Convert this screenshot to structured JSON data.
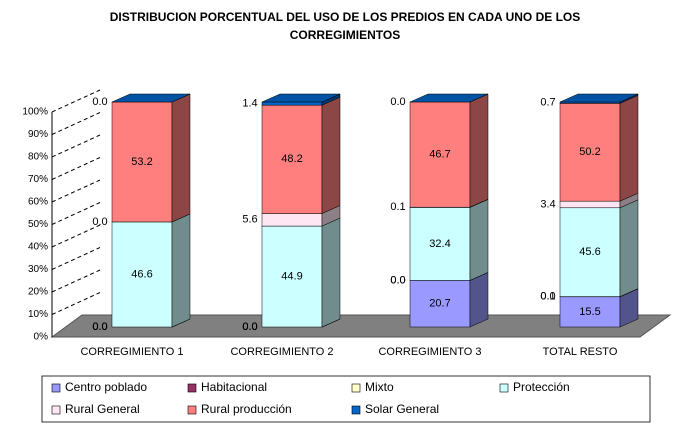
{
  "chart_data": {
    "type": "bar_percent_stacked_3d",
    "title": "DISTRIBUCION PORCENTUAL DEL USO DE LOS PREDIOS EN CADA UNO DE LOS",
    "subtitle": "CORREGIMIENTOS",
    "categories": [
      "CORREGIMIENTO 1",
      "CORREGIMIENTO 2",
      "CORREGIMIENTO 3",
      "TOTAL RESTO"
    ],
    "series": [
      {
        "name": "Centro poblado",
        "color": "#9999ff",
        "values": [
          0.0,
          0.0,
          20.7,
          15.5
        ],
        "value_labels": [
          "0.0",
          "0.0",
          "20.7",
          "15.5"
        ]
      },
      {
        "name": "Habitacional",
        "color": "#993366",
        "values": [
          0.0,
          0.0,
          0.0,
          0.1
        ],
        "value_labels": [
          "0.0",
          "0.0",
          "0.0",
          "0.1"
        ]
      },
      {
        "name": "Mixto",
        "color": "#ffffcc",
        "values": [
          0.0,
          0.0,
          0.0,
          0.0
        ],
        "value_labels": [
          "0.0",
          "0.0",
          "0.0",
          "0.0"
        ]
      },
      {
        "name": "Protección",
        "color": "#ccffff",
        "values": [
          46.6,
          44.9,
          32.4,
          45.6
        ]
      },
      {
        "name": "Rural General",
        "color": "#ffe6f2",
        "values": [
          0.0,
          5.6,
          0.1,
          3.4
        ],
        "value_labels": [
          "0.0",
          "5.6",
          "0.1",
          "3.4"
        ]
      },
      {
        "name": "Rural producción",
        "color": "#ff7f7f",
        "values": [
          53.2,
          48.2,
          46.7,
          50.2
        ]
      },
      {
        "name": "Solar General",
        "color": "#0066cc",
        "values": [
          0.0,
          1.4,
          0.0,
          0.7
        ],
        "value_labels": [
          "0.0",
          "1.4",
          "0.0",
          "0.7"
        ]
      }
    ],
    "ylim": [
      0,
      100
    ],
    "yticks": [
      {
        "value": 0,
        "label": "0%"
      },
      {
        "value": 10,
        "label": "10%"
      },
      {
        "value": 20,
        "label": "20%"
      },
      {
        "value": 30,
        "label": "30%"
      },
      {
        "value": 40,
        "label": "40%"
      },
      {
        "value": 50,
        "label": "50%"
      },
      {
        "value": 60,
        "label": "60%"
      },
      {
        "value": 70,
        "label": "70%"
      },
      {
        "value": 80,
        "label": "80%"
      },
      {
        "value": 90,
        "label": "90%"
      },
      {
        "value": 100,
        "label": "100%"
      }
    ],
    "grid": true
  }
}
